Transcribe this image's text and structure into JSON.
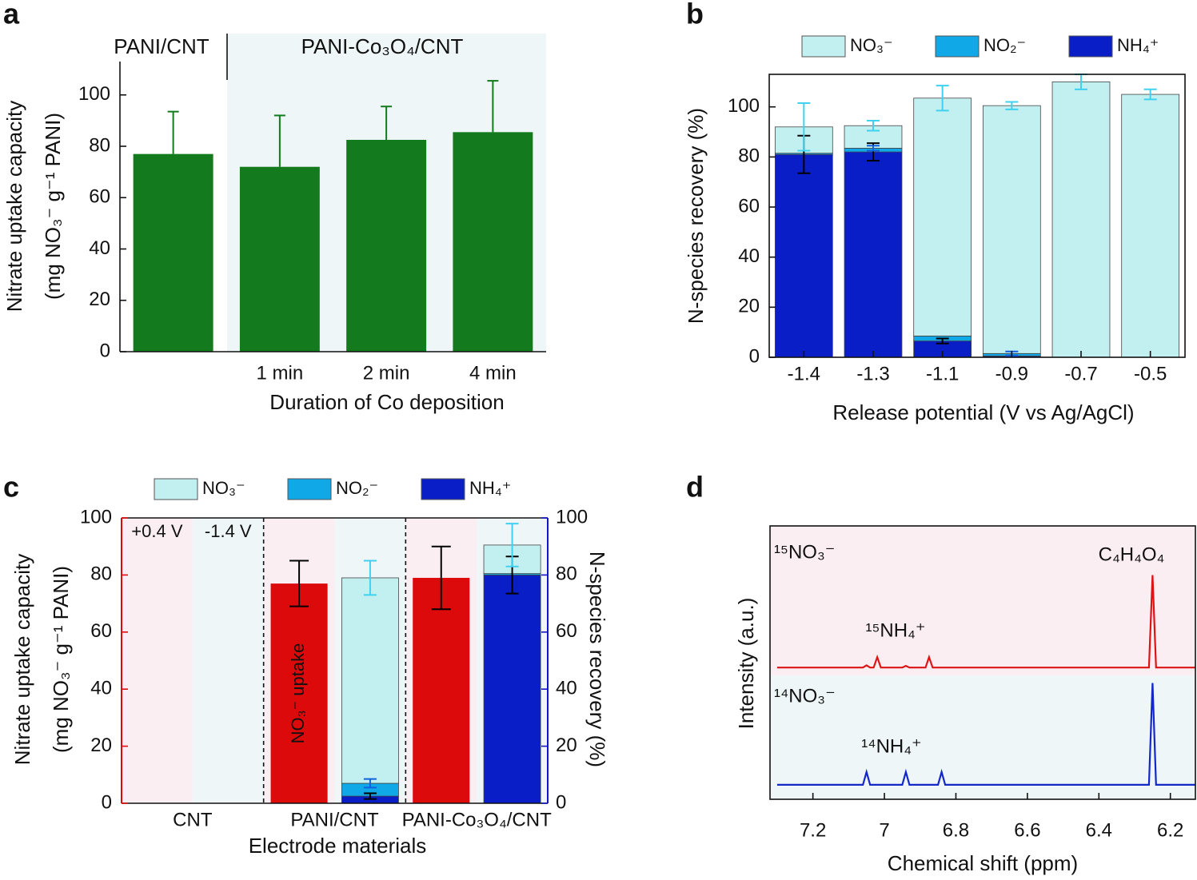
{
  "chart_data": [
    {
      "panel": "a",
      "type": "bar",
      "group_labels": [
        "PANI/CNT",
        "PANI-Co₃O₄/CNT"
      ],
      "categories": [
        null,
        "1 min",
        "2 min",
        "4 min"
      ],
      "values": [
        77,
        72,
        82.5,
        85.5
      ],
      "errors": [
        16.5,
        20,
        13,
        20
      ],
      "error_style": "up",
      "color": "#137a1d",
      "ylim": [
        0,
        113
      ],
      "yticks": [
        0,
        20,
        40,
        60,
        80,
        100
      ],
      "x_label": "Duration of Co deposition",
      "y_label": [
        "Nitrate uptake capacity",
        "(mg NO₃⁻ g⁻¹ PANI)"
      ]
    },
    {
      "panel": "b",
      "type": "stacked_bar",
      "categories": [
        "-1.4",
        "-1.3",
        "-1.1",
        "-0.9",
        "-0.7",
        "-0.5"
      ],
      "series": [
        {
          "name": "NO₃⁻",
          "color": "#c2f0f0",
          "values": [
            10.5,
            9,
            95,
            99,
            110,
            105
          ],
          "errors": [
            9.5,
            2,
            5,
            1.5,
            3,
            2
          ],
          "error_color": "#40d0f0"
        },
        {
          "name": "NO₂⁻",
          "color": "#10a8e6",
          "values": [
            0.5,
            1.5,
            2,
            1,
            0,
            0
          ],
          "errors": [
            null,
            1,
            null,
            0.8,
            null,
            null
          ],
          "error_color": "#1060e0"
        },
        {
          "name": "NH₄⁺",
          "color": "#0a1ec8",
          "values": [
            81,
            82,
            6.5,
            0.5,
            0,
            0
          ],
          "errors": [
            7.5,
            3.5,
            1,
            null,
            null,
            null
          ],
          "error_color": "#000000"
        }
      ],
      "ylim": [
        0,
        113
      ],
      "yticks": [
        0,
        20,
        40,
        60,
        80,
        100
      ],
      "legend": "top",
      "x_label": "Release potential (V vs Ag/AgCl)",
      "y_label": "N-species recovery (%)"
    },
    {
      "panel": "c",
      "type": "bar_stacked_bar",
      "categories": [
        "CNT",
        "PANI/CNT",
        "PANI-Co₃O₄/CNT"
      ],
      "sublabels": [
        "+0.4 V",
        "-1.4 V"
      ],
      "series": [
        {
          "label": "NO₃⁻ uptake",
          "color": "#dc0a0a",
          "values": [
            0,
            77,
            79
          ],
          "errors": [
            null,
            8,
            11
          ],
          "error_color": "#000000"
        },
        {
          "name": "NO₃⁻",
          "axis": "y2",
          "color": "#c2f0f0",
          "values": [
            0,
            72,
            10
          ],
          "errors": [
            null,
            6,
            7.5
          ],
          "error_color": "#40d0f0"
        },
        {
          "name": "NO₂⁻",
          "axis": "y2",
          "color": "#10a8e6",
          "values": [
            0,
            4.5,
            0.5
          ],
          "errors": [
            null,
            1.5,
            null
          ],
          "error_color": "#1060e0"
        },
        {
          "name": "NH₄⁺",
          "axis": "y2",
          "color": "#0a1ec8",
          "values": [
            0,
            2.5,
            80
          ],
          "errors": [
            null,
            1,
            6.5
          ],
          "error_color": "#000000"
        }
      ],
      "ylim": [
        0,
        100
      ],
      "yticks": [
        0,
        20,
        40,
        60,
        80,
        100
      ],
      "y2lim": [
        0,
        100
      ],
      "y2ticks": [
        0,
        20,
        40,
        60,
        80,
        100
      ],
      "y_color": "#dc0a0a",
      "y2_color": "#1414c8",
      "legend": "top",
      "x_label": "Electrode materials",
      "y_label": [
        "Nitrate uptake capacity",
        "(mg NO₃⁻ g⁻¹ PANI)"
      ],
      "y2_label": "N-species recovery (%)"
    },
    {
      "panel": "d",
      "type": "line",
      "x": [
        7.3,
        7.06,
        7.05,
        7.04,
        7.03,
        7.02,
        7.01,
        6.95,
        6.94,
        6.93,
        6.885,
        6.875,
        6.865,
        6.85,
        6.84,
        6.83,
        6.26,
        6.25,
        6.24,
        6.13
      ],
      "series": [
        {
          "name": "¹⁵NO₃⁻",
          "color": "#dc1414",
          "values": [
            48.2,
            48.2,
            49,
            48.2,
            48.2,
            52,
            48.2,
            48.2,
            48.8,
            48.2,
            48.2,
            52,
            48.2,
            48.2,
            48.2,
            48.2,
            48.2,
            82,
            48.2,
            48.2
          ]
        },
        {
          "name": "¹⁴NO₃⁻",
          "color": "#1428c8",
          "values": [
            5.3,
            5.3,
            10,
            5.3,
            5.3,
            5.3,
            5.3,
            5.3,
            10,
            5.3,
            5.3,
            5.3,
            5.3,
            5.3,
            10,
            5.3,
            5.3,
            42.5,
            5.3,
            5.3
          ]
        }
      ],
      "annotations": [
        {
          "text": "¹⁵NH₄⁺",
          "color": "#dc1414"
        },
        {
          "text": "C₄H₄O₄",
          "color": "#111111"
        },
        {
          "text": "¹⁴NH₄⁺",
          "color": "#1428c8"
        }
      ],
      "xlim": [
        7.32,
        6.13
      ],
      "xticks": [
        7.2,
        7,
        6.8,
        6.6,
        6.4,
        6.2
      ],
      "ylim": [
        0,
        100
      ],
      "x_label": "Chemical shift (ppm)",
      "y_label": "Intensity (a.u.)"
    }
  ]
}
